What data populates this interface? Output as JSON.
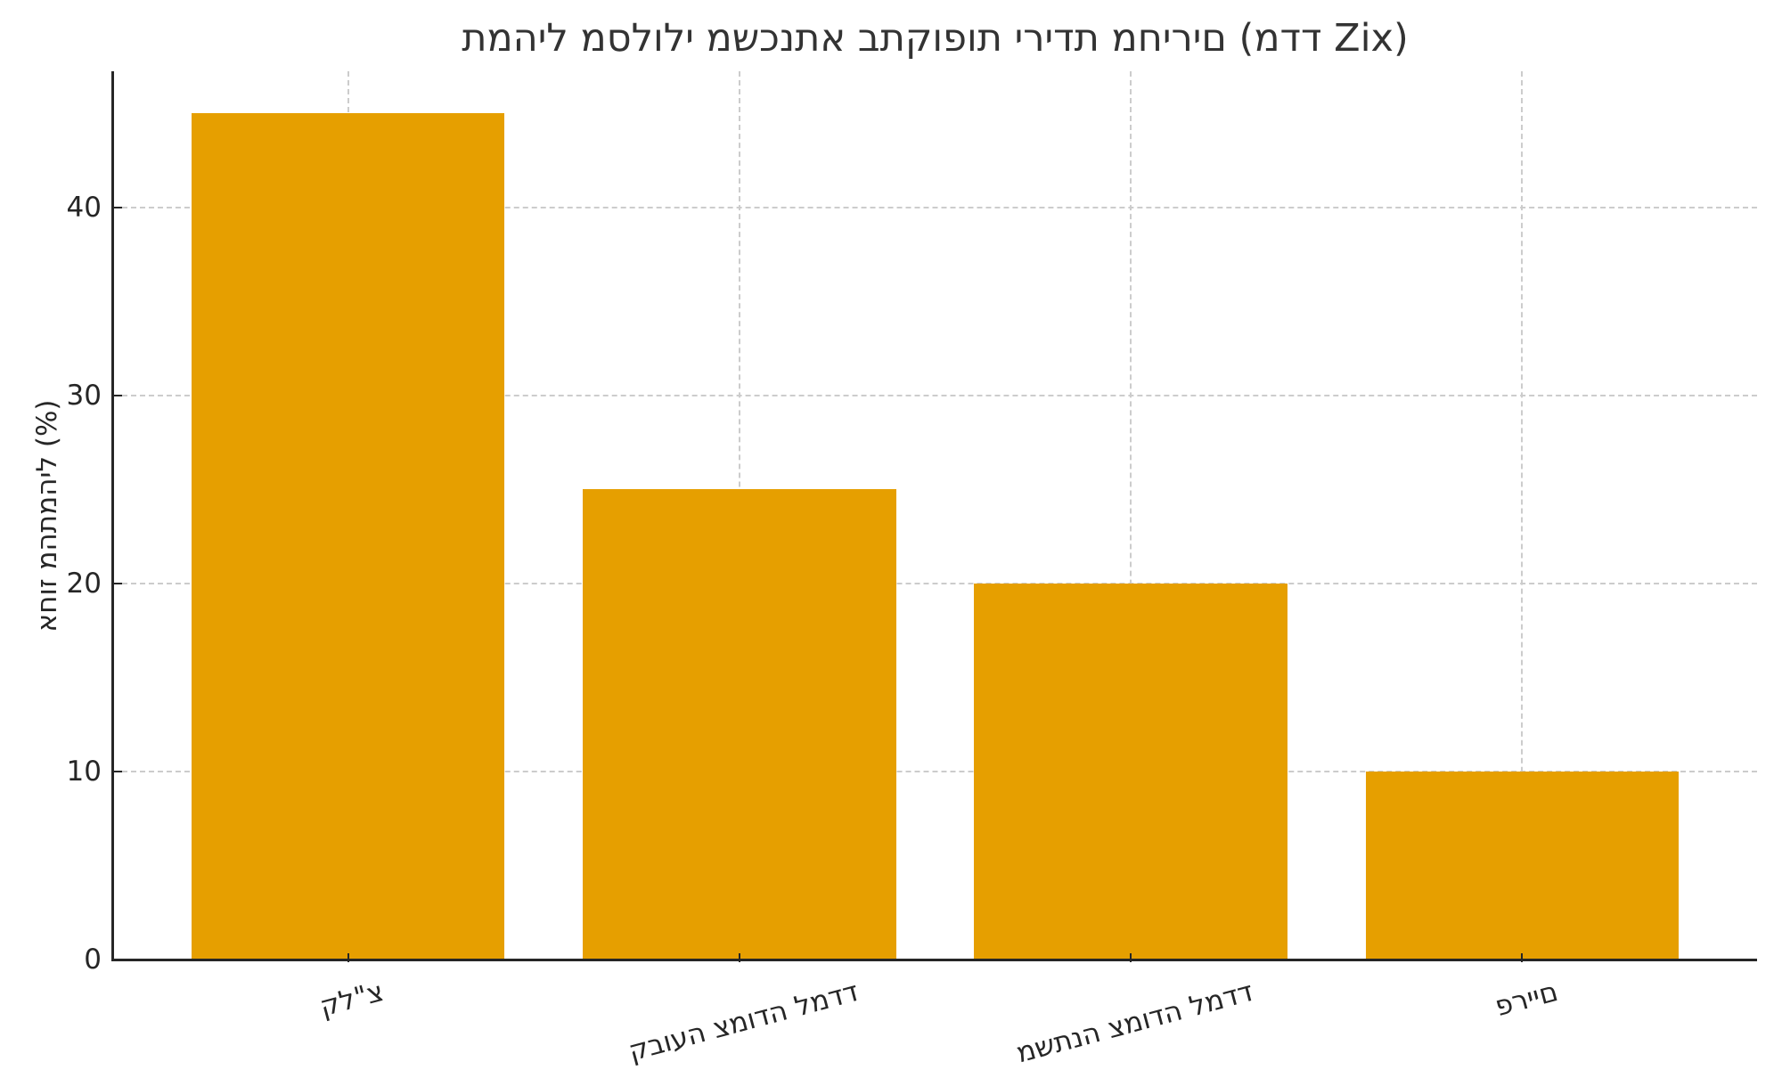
{
  "chart_data": {
    "type": "bar",
    "title": "תמהיל מסלולי משכנתא בתקופות ירידת מחירים (מדד Zix)",
    "xlabel": "",
    "ylabel": "אחוז מהתמהיל (%)",
    "categories": [
      "קל\"צ",
      "קבועה צמודה למדד",
      "משתנה צמודה למדד",
      "פריים"
    ],
    "values": [
      45,
      25,
      20,
      10
    ],
    "ylim": [
      0,
      47.25
    ],
    "yticks": [
      0,
      10,
      20,
      30,
      40
    ],
    "bar_color": "#E69F00",
    "grid": true,
    "grid_style": "dashed",
    "legend": null,
    "xtick_rotation": 15
  },
  "colors": {
    "bar": "#E69F00",
    "grid": "#cccccc",
    "axis": "#262626",
    "title": "#333333",
    "background": "#ffffff"
  }
}
